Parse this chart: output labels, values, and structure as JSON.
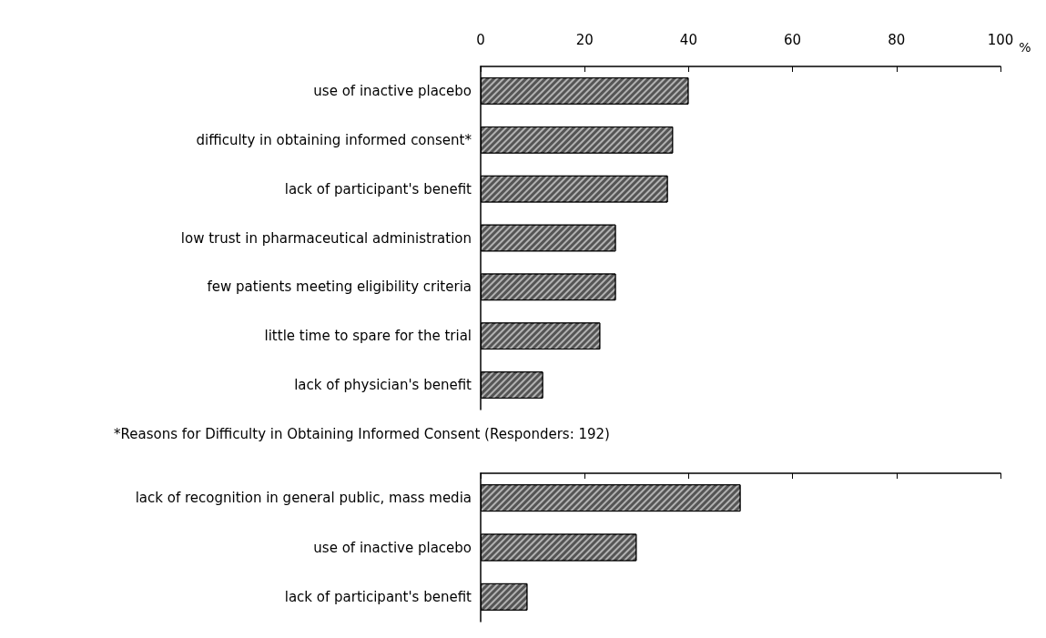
{
  "chart_data": [
    {
      "type": "bar",
      "orientation": "horizontal",
      "categories": [
        "use of inactive placebo",
        "difficulty in obtaining informed consent*",
        "lack of participant's benefit",
        "low trust in pharmaceutical administration",
        "few patients meeting eligibility criteria",
        "little time to spare for the trial",
        "lack of physician's benefit"
      ],
      "values": [
        40,
        37,
        36,
        26,
        26,
        23,
        12
      ],
      "color": "#555555",
      "xlabel": "%",
      "xlim": [
        0,
        100
      ],
      "xticks": [
        0,
        20,
        40,
        60,
        80,
        100
      ],
      "grid": false
    },
    {
      "type": "bar",
      "orientation": "horizontal",
      "title": "*Reasons for Difficulty in Obtaining Informed Consent (Responders: 192)",
      "categories": [
        "lack of recognition in general public, mass media",
        "use of inactive placebo",
        "lack of participant's benefit"
      ],
      "values": [
        50,
        30,
        9
      ],
      "color": "#555555",
      "xlim": [
        0,
        100
      ],
      "xticks": [
        {
          "value": 0,
          "label": null
        },
        {
          "value": 20,
          "label": null
        },
        {
          "value": 40,
          "label": null
        },
        {
          "value": 60,
          "label": null
        },
        {
          "value": 80,
          "label": null
        },
        {
          "value": 100,
          "label": null
        }
      ],
      "tick_labels": "y",
      "grid": false
    }
  ]
}
